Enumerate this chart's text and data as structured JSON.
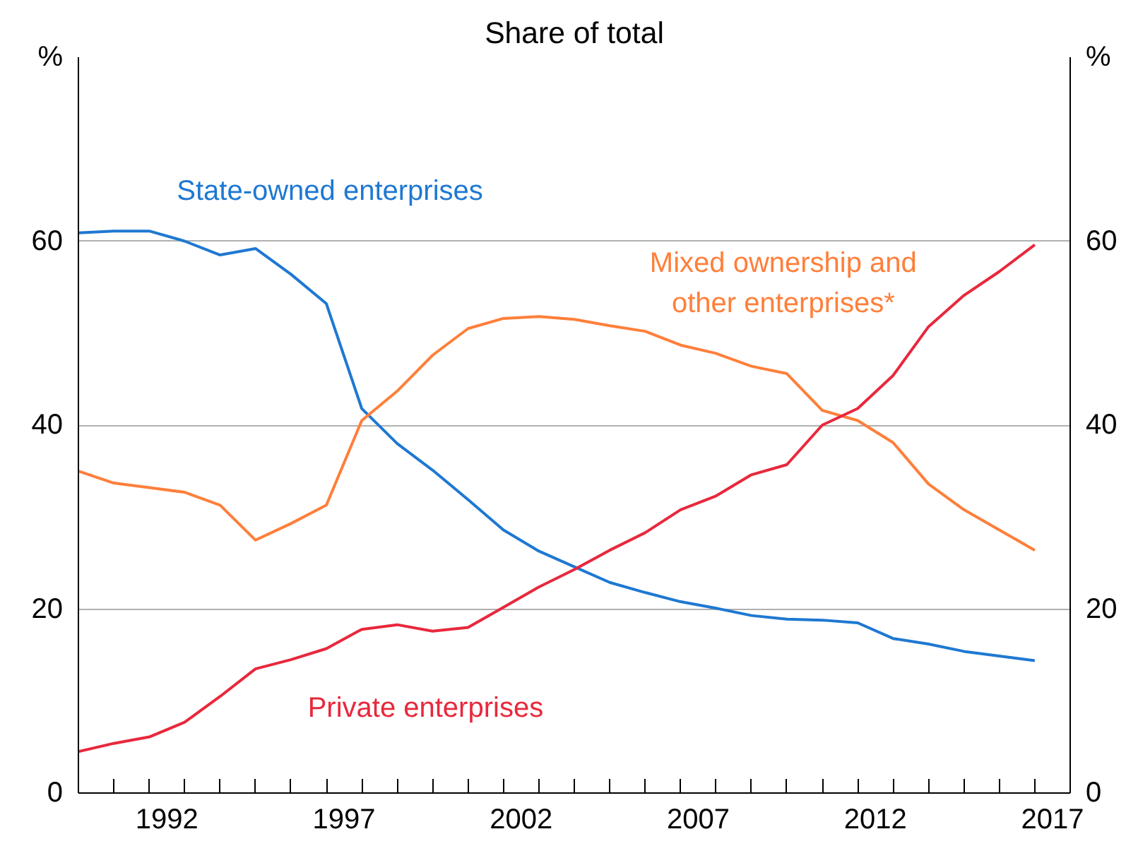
{
  "chart_data": {
    "type": "line",
    "title": "Share of total",
    "ylabel": "%",
    "y2label": "%",
    "x": [
      1990,
      1991,
      1992,
      1993,
      1994,
      1995,
      1996,
      1997,
      1998,
      1999,
      2000,
      2001,
      2002,
      2003,
      2004,
      2005,
      2006,
      2007,
      2008,
      2009,
      2010,
      2011,
      2012,
      2013,
      2014,
      2015,
      2016,
      2017
    ],
    "xlim": [
      1990,
      2018
    ],
    "xticks": [
      {
        "value": 1992.5,
        "label": "1992"
      },
      {
        "value": 1997.5,
        "label": "1997"
      },
      {
        "value": 2002.5,
        "label": "2002"
      },
      {
        "value": 2007.5,
        "label": "2007"
      },
      {
        "value": 2012.5,
        "label": "2012"
      },
      {
        "value": 2017.5,
        "label": "2017"
      },
      {
        "value": 1991,
        "label": null
      },
      {
        "value": 1992,
        "label": null
      },
      {
        "value": 1993,
        "label": null
      },
      {
        "value": 1994,
        "label": null
      },
      {
        "value": 1995,
        "label": null
      },
      {
        "value": 1996,
        "label": null
      },
      {
        "value": 1997,
        "label": null
      },
      {
        "value": 1998,
        "label": null
      },
      {
        "value": 1999,
        "label": null
      },
      {
        "value": 2000,
        "label": null
      },
      {
        "value": 2001,
        "label": null
      },
      {
        "value": 2002,
        "label": null
      },
      {
        "value": 2003,
        "label": null
      },
      {
        "value": 2004,
        "label": null
      },
      {
        "value": 2005,
        "label": null
      },
      {
        "value": 2006,
        "label": null
      },
      {
        "value": 2007,
        "label": null
      },
      {
        "value": 2008,
        "label": null
      },
      {
        "value": 2009,
        "label": null
      },
      {
        "value": 2010,
        "label": null
      },
      {
        "value": 2011,
        "label": null
      },
      {
        "value": 2012,
        "label": null
      },
      {
        "value": 2013,
        "label": null
      },
      {
        "value": 2014,
        "label": null
      },
      {
        "value": 2015,
        "label": null
      },
      {
        "value": 2016,
        "label": null
      },
      {
        "value": 2017,
        "label": null
      }
    ],
    "ylim": [
      0,
      80
    ],
    "yticks": [
      0,
      20,
      40,
      60
    ],
    "y2lim": [
      0,
      80
    ],
    "y2ticks": [
      0,
      20,
      40,
      60
    ],
    "grid": "y",
    "series": [
      {
        "name": "State-owned enterprises",
        "color": "#1e78d2",
        "values": [
          60.9,
          61.1,
          61.1,
          60.0,
          58.5,
          59.2,
          56.4,
          53.2,
          41.8,
          38.0,
          35.1,
          31.9,
          28.6,
          26.3,
          24.6,
          22.9,
          21.8,
          20.8,
          20.1,
          19.3,
          18.9,
          18.8,
          18.5,
          16.8,
          16.2,
          15.4,
          14.9,
          14.4
        ]
      },
      {
        "name": "Mixed ownership and\nother enterprises*",
        "color": "#ff7f3a",
        "values": [
          35.0,
          33.7,
          33.2,
          32.7,
          31.3,
          27.5,
          29.3,
          31.3,
          40.5,
          43.7,
          47.6,
          50.5,
          51.6,
          51.8,
          51.5,
          50.8,
          50.2,
          48.7,
          47.8,
          46.4,
          45.6,
          41.6,
          40.5,
          38.1,
          33.6,
          30.8,
          28.6,
          26.4
        ]
      },
      {
        "name": "Private enterprises",
        "color": "#e8283c",
        "values": [
          4.5,
          5.4,
          6.1,
          7.7,
          10.5,
          13.5,
          14.5,
          15.7,
          17.8,
          18.3,
          17.6,
          18.0,
          20.2,
          22.4,
          24.3,
          26.4,
          28.3,
          30.8,
          32.3,
          34.6,
          35.7,
          40.0,
          41.8,
          45.4,
          50.7,
          54.1,
          56.7,
          59.6
        ]
      }
    ]
  }
}
